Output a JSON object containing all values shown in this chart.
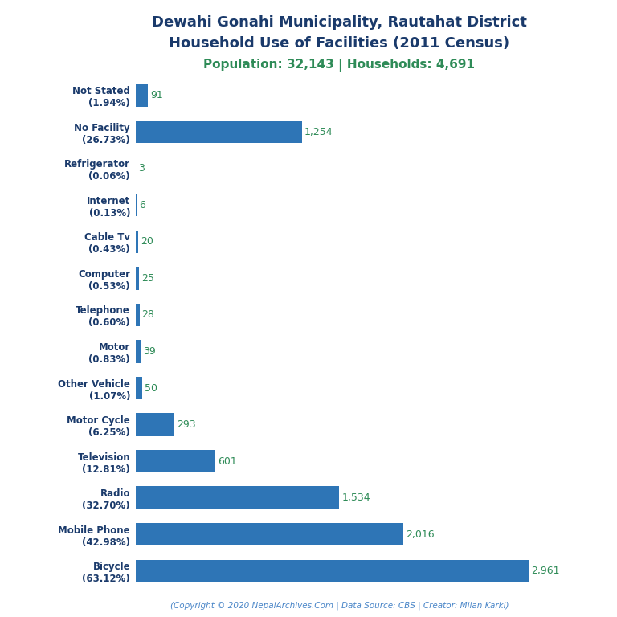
{
  "title_line1": "Dewahi Gonahi Municipality, Rautahat District",
  "title_line2": "Household Use of Facilities (2011 Census)",
  "subtitle": "Population: 32,143 | Households: 4,691",
  "footer": "(Copyright © 2020 NepalArchives.Com | Data Source: CBS | Creator: Milan Karki)",
  "categories": [
    "Bicycle\n(63.12%)",
    "Mobile Phone\n(42.98%)",
    "Radio\n(32.70%)",
    "Television\n(12.81%)",
    "Motor Cycle\n(6.25%)",
    "Other Vehicle\n(1.07%)",
    "Motor\n(0.83%)",
    "Telephone\n(0.60%)",
    "Computer\n(0.53%)",
    "Cable Tv\n(0.43%)",
    "Internet\n(0.13%)",
    "Refrigerator\n(0.06%)",
    "No Facility\n(26.73%)",
    "Not Stated\n(1.94%)"
  ],
  "values": [
    2961,
    2016,
    1534,
    601,
    293,
    50,
    39,
    28,
    25,
    20,
    6,
    3,
    1254,
    91
  ],
  "bar_color_main": "#2e75b6",
  "value_color": "#2e8b57",
  "title_color": "#1a3a6b",
  "subtitle_color": "#2e8b57",
  "footer_color": "#4a86c8",
  "background_color": "#ffffff",
  "xlim": [
    0,
    3300
  ]
}
